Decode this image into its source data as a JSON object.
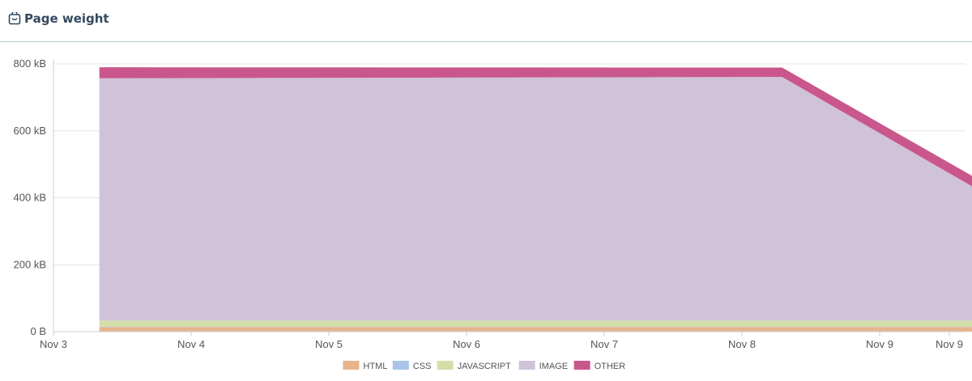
{
  "header": {
    "title": "Page weight",
    "icon": "page-weight-icon"
  },
  "chart_data": {
    "type": "area",
    "stacked": true,
    "title": "",
    "xlabel": "",
    "ylabel": "",
    "x_ticks": [
      "Nov 3",
      "Nov 4",
      "Nov 5",
      "Nov 6",
      "Nov 7",
      "Nov 8",
      "Nov 9",
      "Nov 9"
    ],
    "y_ticks": [
      "0 B",
      "200 kB",
      "400 kB",
      "600 kB",
      "800 kB"
    ],
    "ylim": [
      0,
      800
    ],
    "y_unit": "kB",
    "x": [
      "Nov 3 08:00",
      "Nov 8 07:00",
      "Nov 9 22:00"
    ],
    "series": [
      {
        "name": "HTML",
        "color": "#e8b48c",
        "values": [
          14,
          14,
          14
        ]
      },
      {
        "name": "CSS",
        "color": "#a9c4e8",
        "values": [
          1,
          1,
          1
        ]
      },
      {
        "name": "JAVASCRIPT",
        "color": "#d4dea8",
        "values": [
          18,
          18,
          18
        ]
      },
      {
        "name": "IMAGE",
        "color": "#cfc2d9",
        "values": [
          724,
          728,
          343
        ]
      },
      {
        "name": "OTHER",
        "color": "#c9578b",
        "values": [
          33,
          28,
          32
        ]
      }
    ],
    "grid": true,
    "legend_position": "bottom-center"
  }
}
